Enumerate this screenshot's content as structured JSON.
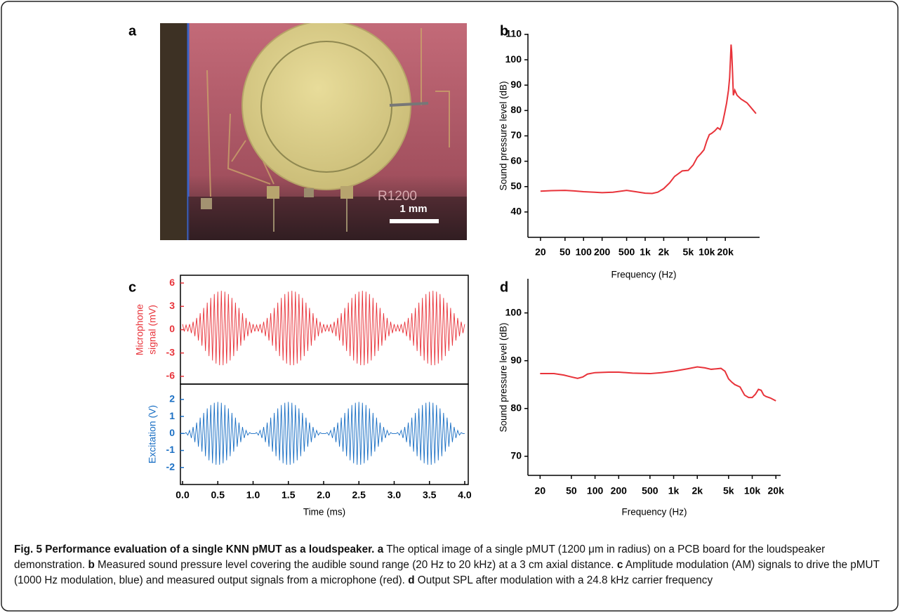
{
  "panel_a": {
    "label": "a",
    "chip_marking": "R1200",
    "scale_bar": "1 mm"
  },
  "chart_data": [
    {
      "type": "line",
      "panel": "b",
      "x_label": "Frequency (Hz)",
      "y_label": "Sound pressure level (dB)",
      "x_scale": "log",
      "xlim": [
        12.5,
        72000
      ],
      "ylim": [
        30,
        110
      ],
      "xticks": [
        20,
        50,
        100,
        200,
        500,
        {
          "value": 1000,
          "label": "1k"
        },
        {
          "value": 2000,
          "label": "2k"
        },
        {
          "value": 5000,
          "label": "5k"
        },
        {
          "value": 10000,
          "label": "10k"
        },
        {
          "value": 20000,
          "label": "20k"
        }
      ],
      "yticks": [
        40,
        50,
        60,
        70,
        80,
        90,
        100,
        110
      ],
      "x": [
        20,
        30,
        50,
        70,
        100,
        150,
        200,
        300,
        500,
        700,
        1000,
        1300,
        1600,
        2000,
        2500,
        3000,
        4000,
        5000,
        6000,
        7000,
        8000,
        9000,
        10000,
        11000,
        12000,
        13500,
        15000,
        16500,
        18000,
        19500,
        21000,
        22500,
        23500,
        24200,
        24800,
        25400,
        26200,
        27000,
        28500,
        31000,
        36000,
        45000,
        55000,
        63000
      ],
      "series": [
        {
          "color": "#e8333a",
          "values": [
            48.2,
            48.4,
            48.5,
            48.3,
            48,
            47.8,
            47.6,
            47.8,
            48.5,
            48,
            47.4,
            47.3,
            47.8,
            49.2,
            51.5,
            54,
            56.2,
            56.4,
            58.5,
            61.5,
            63,
            64.5,
            68,
            70.5,
            71,
            72,
            73.2,
            72.5,
            75,
            79,
            83,
            88,
            93,
            100,
            106,
            103,
            95,
            86,
            88,
            86,
            84.5,
            83,
            80.5,
            78.8
          ]
        }
      ]
    },
    {
      "type": "stacked_line",
      "panel": "c",
      "x_label": "Time (ms)",
      "xlim": [
        -0.03,
        4.05
      ],
      "xticks": [
        {
          "value": 0,
          "label": "0.0"
        },
        0.5,
        {
          "value": 1,
          "label": "1.0"
        },
        1.5,
        {
          "value": 2,
          "label": "2.0"
        },
        2.5,
        {
          "value": 3,
          "label": "3.0"
        },
        3.5,
        {
          "value": 4,
          "label": "4.0"
        }
      ],
      "x": [
        0,
        0.025,
        0.05,
        0.075,
        0.1,
        0.125,
        0.15,
        0.175,
        0.2,
        0.225,
        0.25,
        0.275,
        0.3,
        0.325,
        0.35,
        0.375,
        0.4,
        0.425,
        0.45,
        0.475,
        0.5,
        0.525,
        0.55,
        0.575,
        0.6,
        0.625,
        0.65,
        0.675,
        0.7,
        0.725,
        0.75,
        0.775,
        0.8,
        0.825,
        0.85,
        0.875,
        0.9,
        0.925,
        0.95,
        0.975,
        1,
        1.025,
        1.05,
        1.075,
        1.1,
        1.125,
        1.15,
        1.175,
        1.2,
        1.225,
        1.25,
        1.275,
        1.3,
        1.325,
        1.35,
        1.375,
        1.4,
        1.425,
        1.45,
        1.475,
        1.5,
        1.525,
        1.55,
        1.575,
        1.6,
        1.625,
        1.65,
        1.675,
        1.7,
        1.725,
        1.75,
        1.775,
        1.8,
        1.825,
        1.85,
        1.875,
        1.9,
        1.925,
        1.95,
        1.975,
        2,
        2.025,
        2.05,
        2.075,
        2.1,
        2.125,
        2.15,
        2.175,
        2.2,
        2.225,
        2.25,
        2.275,
        2.3,
        2.325,
        2.35,
        2.375,
        2.4,
        2.425,
        2.45,
        2.475,
        2.5,
        2.525,
        2.55,
        2.575,
        2.6,
        2.625,
        2.65,
        2.675,
        2.7,
        2.725,
        2.75,
        2.775,
        2.8,
        2.825,
        2.85,
        2.875,
        2.9,
        2.925,
        2.95,
        2.975,
        3,
        3.025,
        3.05,
        3.075,
        3.1,
        3.125,
        3.15,
        3.175,
        3.2,
        3.225,
        3.25,
        3.275,
        3.3,
        3.325,
        3.35,
        3.375,
        3.4,
        3.425,
        3.45,
        3.475,
        3.5,
        3.525,
        3.55,
        3.575,
        3.6,
        3.625,
        3.65,
        3.675,
        3.7,
        3.725,
        3.75,
        3.775,
        3.8,
        3.825,
        3.85,
        3.875,
        3.9,
        3.925,
        3.95,
        3.975,
        4
      ],
      "panels": [
        {
          "y_label": [
            "Microphone",
            "signal (mV)"
          ],
          "color": "#e8333a",
          "ylim": [
            -7,
            7
          ],
          "yticks": [
            -6,
            -3,
            0,
            3,
            6
          ],
          "values": [
            0.71,
            -0.23,
            0.6,
            -0.23,
            0.71,
            -0.44,
            1.02,
            -0.84,
            1.51,
            -1.4,
            2.12,
            -2.06,
            2.8,
            -2.74,
            3.48,
            -3.4,
            4.09,
            -3.96,
            4.58,
            -4.36,
            4.89,
            -4.57,
            5,
            -4.57,
            4.89,
            -4.36,
            4.58,
            -3.96,
            4.09,
            -3.4,
            3.48,
            -2.74,
            2.8,
            -2.06,
            2.12,
            -1.4,
            1.51,
            -0.84,
            1.02,
            -0.44,
            0.71,
            -0.23,
            0.6,
            -0.23,
            0.71,
            -0.44,
            1.02,
            -0.84,
            1.51,
            -1.4,
            2.12,
            -2.06,
            2.8,
            -2.74,
            3.48,
            -3.4,
            4.09,
            -3.96,
            4.58,
            -4.36,
            4.89,
            -4.57,
            5,
            -4.57,
            4.89,
            -4.36,
            4.58,
            -3.96,
            4.09,
            -3.4,
            3.48,
            -2.74,
            2.8,
            -2.06,
            2.12,
            -1.4,
            1.51,
            -0.84,
            1.02,
            -0.44,
            0.71,
            -0.23,
            0.6,
            -0.23,
            0.71,
            -0.44,
            1.02,
            -0.84,
            1.51,
            -1.4,
            2.12,
            -2.06,
            2.8,
            -2.74,
            3.48,
            -3.4,
            4.09,
            -3.96,
            4.58,
            -4.36,
            4.89,
            -4.57,
            5,
            -4.57,
            4.89,
            -4.36,
            4.58,
            -3.96,
            4.09,
            -3.4,
            3.48,
            -2.74,
            2.8,
            -2.06,
            2.12,
            -1.4,
            1.51,
            -0.84,
            1.02,
            -0.44,
            0.71,
            -0.23,
            0.6,
            -0.23,
            0.71,
            -0.44,
            1.02,
            -0.84,
            1.51,
            -1.4,
            2.12,
            -2.06,
            2.8,
            -2.74,
            3.48,
            -3.4,
            4.09,
            -3.96,
            4.58,
            -4.36,
            4.89,
            -4.57,
            5,
            -4.57,
            4.89,
            -4.36,
            4.58,
            -3.96,
            4.09,
            -3.4,
            3.48,
            -2.74,
            2.8,
            -2.06,
            2.12,
            -1.4,
            1.51,
            -0.84,
            1.02,
            -0.44,
            0.71
          ]
        },
        {
          "y_label": [
            "Excitation (V)"
          ],
          "color": "#1a6fc4",
          "ylim": [
            -3,
            2.9
          ],
          "yticks": [
            -2,
            -1,
            0,
            1,
            2
          ],
          "values": [
            0,
            -0.01,
            0.05,
            -0.1,
            0.18,
            -0.27,
            0.38,
            -0.51,
            0.64,
            -0.78,
            0.93,
            -1.07,
            1.21,
            -1.34,
            1.47,
            -1.58,
            1.67,
            -1.75,
            1.8,
            -1.84,
            1.85,
            -1.84,
            1.8,
            -1.75,
            1.67,
            -1.58,
            1.47,
            -1.34,
            1.21,
            -1.07,
            0.93,
            -0.78,
            0.64,
            -0.51,
            0.38,
            -0.27,
            0.18,
            -0.1,
            0.05,
            -0.01,
            0,
            -0.01,
            0.05,
            -0.1,
            0.18,
            -0.27,
            0.38,
            -0.51,
            0.64,
            -0.78,
            0.93,
            -1.07,
            1.21,
            -1.34,
            1.47,
            -1.58,
            1.67,
            -1.75,
            1.8,
            -1.84,
            1.85,
            -1.84,
            1.8,
            -1.75,
            1.67,
            -1.58,
            1.47,
            -1.34,
            1.21,
            -1.07,
            0.93,
            -0.78,
            0.64,
            -0.51,
            0.38,
            -0.27,
            0.18,
            -0.1,
            0.05,
            -0.01,
            0,
            -0.01,
            0.05,
            -0.1,
            0.18,
            -0.27,
            0.38,
            -0.51,
            0.64,
            -0.78,
            0.93,
            -1.07,
            1.21,
            -1.34,
            1.47,
            -1.58,
            1.67,
            -1.75,
            1.8,
            -1.84,
            1.85,
            -1.84,
            1.8,
            -1.75,
            1.67,
            -1.58,
            1.47,
            -1.34,
            1.21,
            -1.07,
            0.93,
            -0.78,
            0.64,
            -0.51,
            0.38,
            -0.27,
            0.18,
            -0.1,
            0.05,
            -0.01,
            0,
            -0.01,
            0.05,
            -0.1,
            0.18,
            -0.27,
            0.38,
            -0.51,
            0.64,
            -0.78,
            0.93,
            -1.07,
            1.21,
            -1.34,
            1.47,
            -1.58,
            1.67,
            -1.75,
            1.8,
            -1.84,
            1.85,
            -1.84,
            1.8,
            -1.75,
            1.67,
            -1.58,
            1.47,
            -1.34,
            1.21,
            -1.07,
            0.93,
            -0.78,
            0.64,
            -0.51,
            0.38,
            -0.27,
            0.18,
            -0.1,
            0.05,
            -0.01,
            0
          ]
        }
      ]
    },
    {
      "type": "line",
      "panel": "d",
      "x_label": "Frequency (Hz)",
      "y_label": "Sound pressure level (dB)",
      "x_scale": "log",
      "xlim": [
        14,
        23000
      ],
      "ylim": [
        66,
        107
      ],
      "xticks": [
        20,
        50,
        100,
        200,
        500,
        {
          "value": 1000,
          "label": "1k"
        },
        {
          "value": 2000,
          "label": "2k"
        },
        {
          "value": 5000,
          "label": "5k"
        },
        {
          "value": 10000,
          "label": "10k"
        },
        {
          "value": 20000,
          "label": "20k"
        }
      ],
      "yticks": [
        70,
        80,
        90,
        100
      ],
      "x": [
        20,
        30,
        40,
        50,
        60,
        70,
        80,
        100,
        150,
        200,
        300,
        500,
        700,
        1000,
        1500,
        2000,
        2500,
        3000,
        3500,
        4000,
        4500,
        5000,
        5500,
        6000,
        7000,
        8000,
        9000,
        10000,
        11000,
        12000,
        13000,
        14000,
        15000,
        17000,
        20000
      ],
      "series": [
        {
          "color": "#e8333a",
          "values": [
            87.3,
            87.3,
            87,
            86.6,
            86.3,
            86.6,
            87.2,
            87.5,
            87.6,
            87.6,
            87.4,
            87.3,
            87.5,
            87.8,
            88.3,
            88.7,
            88.5,
            88.2,
            88.3,
            88.4,
            87.8,
            86.2,
            85.5,
            85,
            84.5,
            82.8,
            82.3,
            82.3,
            83,
            84,
            83.8,
            82.8,
            82.5,
            82.2,
            81.6
          ]
        }
      ]
    }
  ],
  "caption": {
    "title": "Fig. 5 Performance evaluation of a single KNN pMUT as a loudspeaker.",
    "parts": [
      {
        "label": "a",
        "text": "The optical image of a single pMUT (1200 μm in radius) on a PCB board for the loudspeaker demonstration."
      },
      {
        "label": "b",
        "text": "Measured sound pressure level covering the audible sound range (20 Hz to 20 kHz) at a 3 cm axial distance."
      },
      {
        "label": "c",
        "text": "Amplitude modulation (AM) signals to drive the pMUT (1000 Hz modulation, blue) and measured output signals from a microphone (red)."
      },
      {
        "label": "d",
        "text": "Output SPL after modulation with a 24.8 kHz carrier frequency"
      }
    ]
  }
}
